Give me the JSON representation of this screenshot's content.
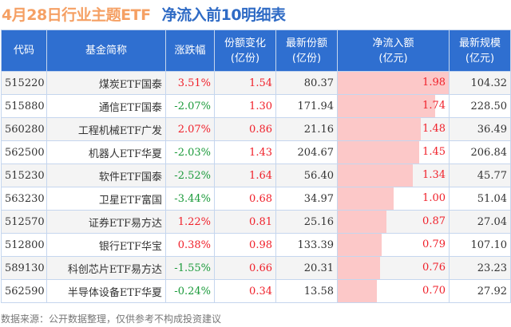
{
  "title": {
    "part1": "4月28日行业主题ETF",
    "part2": "净流入前10明细表"
  },
  "headers": [
    [
      "代码"
    ],
    [
      "基金简称"
    ],
    [
      "涨跌幅"
    ],
    [
      "份额变化",
      "(亿份)"
    ],
    [
      "最新份额",
      "(亿份)"
    ],
    [
      "净流入额",
      "(亿元)"
    ],
    [
      "最新规模",
      "(亿元)"
    ]
  ],
  "rows": [
    {
      "code": "515220",
      "name": "煤炭ETF国泰",
      "change": "3.51%",
      "share_change": "1.54",
      "shares": "80.37",
      "inflow": "1.98",
      "scale": "104.32"
    },
    {
      "code": "515880",
      "name": "通信ETF国泰",
      "change": "-2.07%",
      "share_change": "1.30",
      "shares": "171.94",
      "inflow": "1.74",
      "scale": "228.50"
    },
    {
      "code": "560280",
      "name": "工程机械ETF广发",
      "change": "2.07%",
      "share_change": "0.86",
      "shares": "21.16",
      "inflow": "1.48",
      "scale": "36.49"
    },
    {
      "code": "562500",
      "name": "机器人ETF华夏",
      "change": "-2.03%",
      "share_change": "1.43",
      "shares": "204.67",
      "inflow": "1.45",
      "scale": "206.84"
    },
    {
      "code": "515230",
      "name": "软件ETF国泰",
      "change": "-2.52%",
      "share_change": "1.64",
      "shares": "56.40",
      "inflow": "1.34",
      "scale": "45.77"
    },
    {
      "code": "563230",
      "name": "卫星ETF富国",
      "change": "-3.44%",
      "share_change": "0.68",
      "shares": "34.97",
      "inflow": "1.00",
      "scale": "51.04"
    },
    {
      "code": "512570",
      "name": "证券ETF易方达",
      "change": "1.22%",
      "share_change": "0.81",
      "shares": "25.16",
      "inflow": "0.87",
      "scale": "27.04"
    },
    {
      "code": "512800",
      "name": "银行ETF华宝",
      "change": "0.38%",
      "share_change": "0.98",
      "shares": "133.39",
      "inflow": "0.79",
      "scale": "107.10"
    },
    {
      "code": "589130",
      "name": "科创芯片ETF易方达",
      "change": "-1.55%",
      "share_change": "0.66",
      "shares": "20.31",
      "inflow": "0.76",
      "scale": "23.23"
    },
    {
      "code": "562590",
      "name": "半导体设备ETF华夏",
      "change": "-0.24%",
      "share_change": "0.34",
      "shares": "13.58",
      "inflow": "0.70",
      "scale": "27.92"
    }
  ],
  "footer": "数据来源：公开数据整理，仅供参考不构成投资建议",
  "colors": {
    "header": "#2f6fd0",
    "up": "#f0202a",
    "down": "#1a9a3a",
    "bar": "#fcc8c8"
  }
}
